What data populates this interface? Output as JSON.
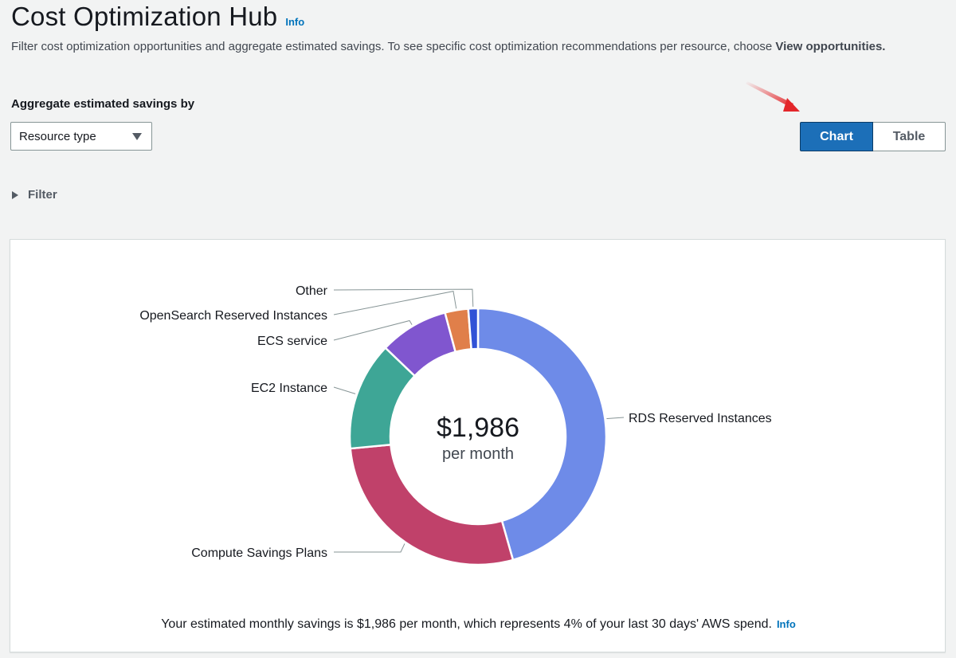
{
  "header": {
    "title": "Cost Optimization Hub",
    "info_label": "Info",
    "description_text": "Filter cost optimization opportunities and aggregate estimated savings. To see specific cost optimization recommendations per resource, choose ",
    "description_bold": "View opportunities."
  },
  "aggregate": {
    "label": "Aggregate estimated savings by",
    "selected": "Resource type"
  },
  "view_toggle": {
    "chart_label": "Chart",
    "table_label": "Table",
    "selected": "Chart"
  },
  "filter": {
    "label": "Filter",
    "expanded": false
  },
  "chart_data": {
    "type": "pie",
    "variant": "donut",
    "center_value": "$1,986",
    "center_label": "per month",
    "slices": [
      {
        "label": "RDS Reserved Instances",
        "percent": 45.1,
        "color": "#6e8be8"
      },
      {
        "label": "Compute Savings Plans",
        "percent": 27.6,
        "color": "#c0416a"
      },
      {
        "label": "EC2 Instance",
        "percent": 13.5,
        "color": "#3ea696"
      },
      {
        "label": "ECS service",
        "percent": 8.6,
        "color": "#8056cf"
      },
      {
        "label": "OpenSearch Reserved Instances",
        "percent": 2.9,
        "color": "#e07f4a"
      },
      {
        "label": "Other",
        "percent": 1.2,
        "color": "#3152d6"
      }
    ]
  },
  "summary": {
    "text": "Your estimated monthly savings is $1,986 per month, which represents 4% of your last 30 days' AWS spend.",
    "info_label": "Info"
  },
  "colors": {
    "accent": "#1c6fb8",
    "link": "#0073bb",
    "arrow": "#e3262a"
  }
}
